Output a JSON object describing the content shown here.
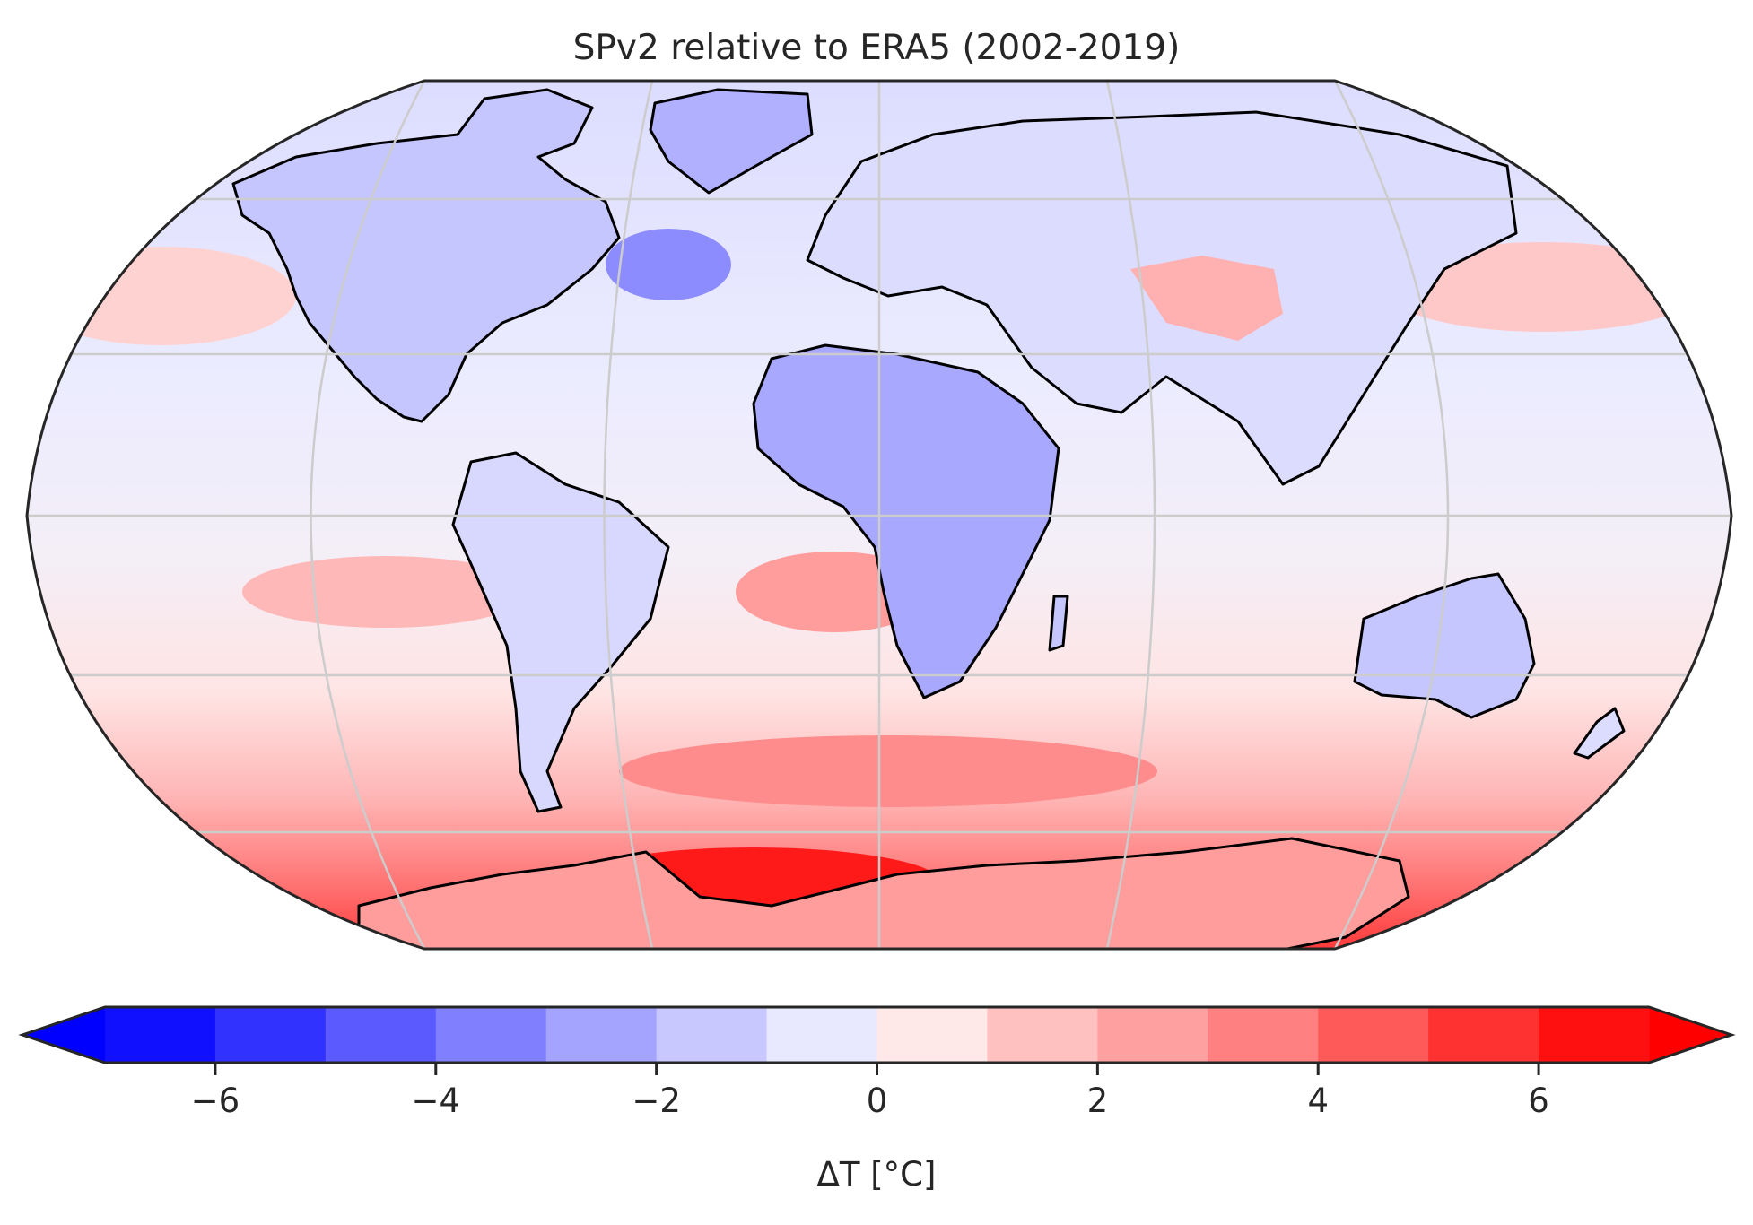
{
  "chart_data": {
    "type": "heatmap",
    "title": "SPv2 relative to ERA5 (2002-2019)",
    "projection": "Robinson",
    "gridlines": true,
    "colorbar": {
      "label": "ΔT [°C]",
      "min": -7,
      "max": 7,
      "extend": "both",
      "levels": [
        -7,
        -6,
        -5,
        -4,
        -3,
        -2,
        -1,
        0,
        1,
        2,
        3,
        4,
        5,
        6,
        7
      ],
      "ticks": [
        -6,
        -4,
        -2,
        0,
        2,
        4,
        6
      ],
      "tick_labels": [
        "−6",
        "−4",
        "−2",
        "0",
        "2",
        "4",
        "6"
      ],
      "colors": [
        "#1010ff",
        "#3232ff",
        "#5a5aff",
        "#8080ff",
        "#a4a4ff",
        "#c8c8ff",
        "#e8e8ff",
        "#ffe8e8",
        "#ffc0c0",
        "#ffa0a0",
        "#ff8080",
        "#ff5a5a",
        "#ff3232",
        "#ff1010"
      ],
      "under_color": "#0000ff",
      "over_color": "#ff0000"
    }
  }
}
